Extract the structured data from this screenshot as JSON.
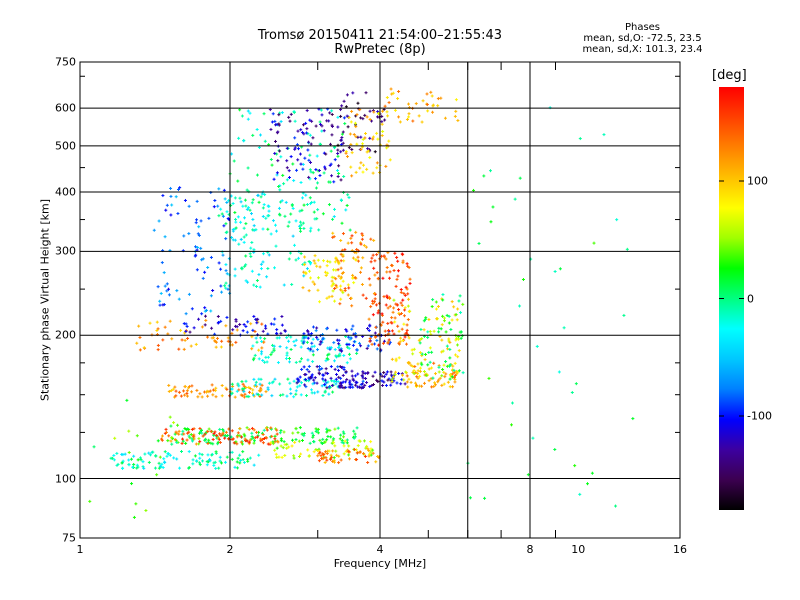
{
  "header": {
    "title_line1": "Tromsø 20150411 21:54:00–21:55:43",
    "title_line2": "RwPretec (8p)",
    "stats_heading": "Phases",
    "stats_o": "mean, sd,O: -72.5, 23.5",
    "stats_x": "mean, sd,X: 101.3, 23.4"
  },
  "colorbar": {
    "unit": "[deg]",
    "ticks": [
      {
        "label": "100",
        "value": 100
      },
      {
        "label": "0",
        "value": 0
      },
      {
        "label": "-100",
        "value": -100
      }
    ],
    "range": [
      -180,
      180
    ],
    "colors": [
      "#000000",
      "#3c0050",
      "#3c00a0",
      "#0000ff",
      "#0080ff",
      "#00c8ff",
      "#00ffff",
      "#00ff80",
      "#00ff00",
      "#a0ff00",
      "#ffff00",
      "#ffc000",
      "#ff8000",
      "#ff4000",
      "#ff0000"
    ]
  },
  "chart_data": {
    "type": "scatter",
    "xlabel": "Frequency [MHz]",
    "ylabel": "Stationary phase Virtual Height [km]",
    "x_scale": "log",
    "y_scale": "log",
    "xlim": [
      1,
      16
    ],
    "ylim": [
      75,
      750
    ],
    "x_ticks": [
      {
        "label": "1",
        "value": 1
      },
      {
        "label": "2",
        "value": 2
      },
      {
        "label": "4",
        "value": 4
      },
      {
        "label": "8",
        "value": 8
      },
      {
        "label": "10",
        "value": 10
      },
      {
        "label": "16",
        "value": 16
      }
    ],
    "x_gridlines": [
      2,
      4,
      6,
      8
    ],
    "x_minor_ticks": [
      3,
      5,
      6,
      7,
      9
    ],
    "y_ticks": [
      {
        "label": "750",
        "value": 750
      },
      {
        "label": "600",
        "value": 600
      },
      {
        "label": "500",
        "value": 500
      },
      {
        "label": "400",
        "value": 400
      },
      {
        "label": "300",
        "value": 300
      },
      {
        "label": "200",
        "value": 200
      },
      {
        "label": "100",
        "value": 100
      },
      {
        "label": "75",
        "value": 75
      }
    ],
    "y_gridlines": [
      600,
      500,
      400,
      300,
      200,
      100
    ],
    "grid": true,
    "color_encoding": "phase [deg]",
    "point_groups": [
      {
        "f_range": [
          1.15,
          2.3
        ],
        "h_range": [
          105,
          114
        ],
        "phase": -10,
        "count": 110
      },
      {
        "f_range": [
          1.5,
          3.6
        ],
        "h_range": [
          118,
          128
        ],
        "phase": 20,
        "count": 150
      },
      {
        "f_range": [
          1.45,
          2.5
        ],
        "h_range": [
          118,
          128
        ],
        "phase": 140,
        "count": 90
      },
      {
        "f_range": [
          2.4,
          3.9
        ],
        "h_range": [
          110,
          120
        ],
        "phase": 60,
        "count": 60
      },
      {
        "f_range": [
          3.0,
          4.0
        ],
        "h_range": [
          108,
          116
        ],
        "phase": 130,
        "count": 50
      },
      {
        "f_range": [
          1.5,
          2.4
        ],
        "h_range": [
          148,
          158
        ],
        "phase": 120,
        "count": 70
      },
      {
        "f_range": [
          2.0,
          3.4
        ],
        "h_range": [
          148,
          162
        ],
        "phase": -20,
        "count": 80
      },
      {
        "f_range": [
          2.7,
          3.8
        ],
        "h_range": [
          155,
          172
        ],
        "phase": -110,
        "count": 90
      },
      {
        "f_range": [
          3.3,
          4.5
        ],
        "h_range": [
          155,
          168
        ],
        "phase": -125,
        "count": 60
      },
      {
        "f_range": [
          4.5,
          5.8
        ],
        "h_range": [
          155,
          175
        ],
        "phase": 110,
        "count": 70
      },
      {
        "f_range": [
          1.3,
          2.4
        ],
        "h_range": [
          185,
          215
        ],
        "phase": 120,
        "count": 60
      },
      {
        "f_range": [
          1.6,
          2.6
        ],
        "h_range": [
          200,
          220
        ],
        "phase": -115,
        "count": 50
      },
      {
        "f_range": [
          2.2,
          3.6
        ],
        "h_range": [
          175,
          200
        ],
        "phase": -15,
        "count": 90
      },
      {
        "f_range": [
          2.8,
          4.2
        ],
        "h_range": [
          185,
          210
        ],
        "phase": -100,
        "count": 80
      },
      {
        "f_range": [
          3.8,
          4.6
        ],
        "h_range": [
          190,
          300
        ],
        "phase": 150,
        "count": 120
      },
      {
        "f_range": [
          4.2,
          5.8
        ],
        "h_range": [
          160,
          240
        ],
        "phase": 80,
        "count": 80
      },
      {
        "f_range": [
          4.8,
          5.9
        ],
        "h_range": [
          160,
          250
        ],
        "phase": 15,
        "count": 60
      },
      {
        "f_range": [
          1.4,
          2.0
        ],
        "h_range": [
          220,
          410
        ],
        "phase": -80,
        "count": 90
      },
      {
        "f_range": [
          1.9,
          3.0
        ],
        "h_range": [
          250,
          400
        ],
        "phase": -20,
        "count": 120
      },
      {
        "f_range": [
          2.8,
          3.6
        ],
        "h_range": [
          235,
          295
        ],
        "phase": 90,
        "count": 70
      },
      {
        "f_range": [
          3.2,
          4.0
        ],
        "h_range": [
          230,
          330
        ],
        "phase": 130,
        "count": 60
      },
      {
        "f_range": [
          2.0,
          3.5
        ],
        "h_range": [
          330,
          600
        ],
        "phase": -10,
        "count": 140
      },
      {
        "f_range": [
          2.4,
          3.4
        ],
        "h_range": [
          420,
          600
        ],
        "phase": -120,
        "count": 90
      },
      {
        "f_range": [
          3.1,
          4.1
        ],
        "h_range": [
          480,
          650
        ],
        "phase": -150,
        "count": 50
      },
      {
        "f_range": [
          3.4,
          4.2
        ],
        "h_range": [
          430,
          600
        ],
        "phase": 95,
        "count": 60
      },
      {
        "f_range": [
          4.0,
          5.8
        ],
        "h_range": [
          560,
          660
        ],
        "phase": 110,
        "count": 40
      },
      {
        "f_range": [
          1.0,
          1.6
        ],
        "h_range": [
          78,
          150
        ],
        "phase": 30,
        "count": 20
      },
      {
        "f_range": [
          6.0,
          13.0
        ],
        "h_range": [
          85,
          620
        ],
        "phase": 10,
        "count": 40
      }
    ]
  }
}
